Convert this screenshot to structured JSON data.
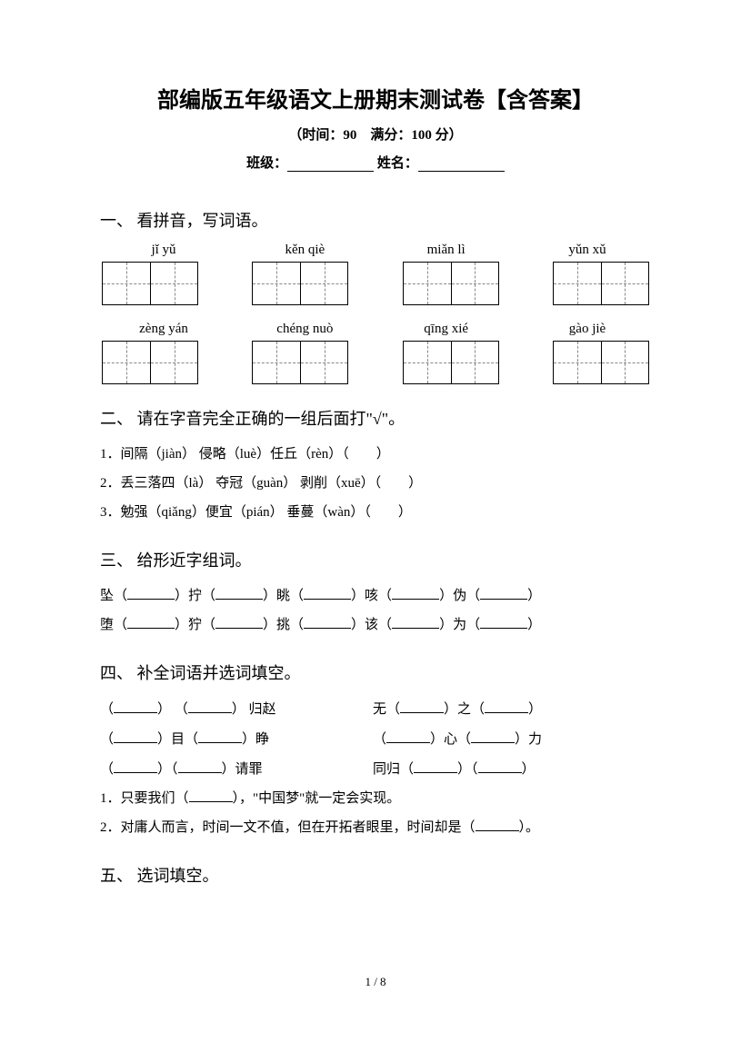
{
  "header": {
    "title": "部编版五年级语文上册期末测试卷【含答案】",
    "subtitle": "（时间：90　满分：100 分）",
    "class_label": "班级：",
    "name_label": "姓名："
  },
  "section1": {
    "heading": "一、 看拼音，写词语。",
    "row1": [
      "jǐ yǔ",
      "kěn qiè",
      "miǎn lì",
      "yǔn xǔ"
    ],
    "row2": [
      "zèng yán",
      "chéng nuò",
      "qīng xié",
      "gào jiè"
    ]
  },
  "section2": {
    "heading": "二、 请在字音完全正确的一组后面打\"√\"。",
    "q1": "1．间隔（jiàn） 侵略（luè）任丘（rèn）（　　）",
    "q2": "2．丢三落四（là） 夺冠（guàn） 剥削（xuē）（　　）",
    "q3": "3．勉强（qiǎng）便宜（pián） 垂蔓（wàn）（　　）"
  },
  "section3": {
    "heading": "三、 给形近字组词。",
    "line1_parts": [
      "坠（",
      "）拧（",
      "）眺（",
      "）咳（",
      "）伪（",
      "）"
    ],
    "line2_parts": [
      "堕（",
      "）狞（",
      "）挑（",
      "）该（",
      "）为（",
      "）"
    ]
  },
  "section4": {
    "heading": "四、 补全词语并选词填空。",
    "r1l": [
      "（",
      "） （",
      "） 归赵"
    ],
    "r1r": [
      "无（",
      "）之（",
      "）"
    ],
    "r2l": [
      "（",
      "）目（",
      "）睁"
    ],
    "r2r": [
      "（",
      "）心（",
      "）力"
    ],
    "r3l": [
      "（",
      "）（",
      "）请罪"
    ],
    "r3r": [
      "同归（",
      "）（",
      "）"
    ],
    "q1_pre": "1．只要我们（",
    "q1_post": "），\"中国梦\"就一定会实现。",
    "q2_pre": "2．对庸人而言，时间一文不值，但在开拓者眼里，时间却是（",
    "q2_post": "）。"
  },
  "section5": {
    "heading": "五、 选词填空。"
  },
  "footer": {
    "page": "1 / 8"
  }
}
